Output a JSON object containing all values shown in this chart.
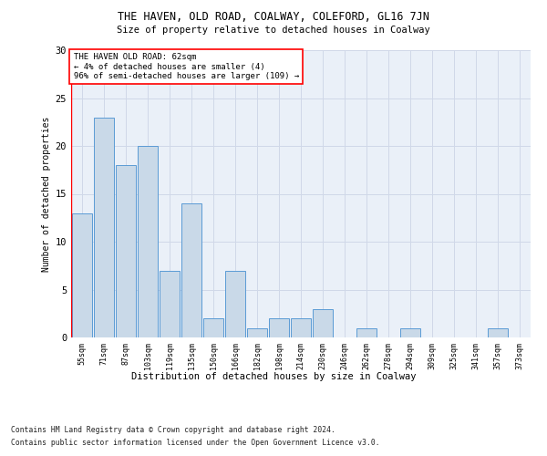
{
  "title": "THE HAVEN, OLD ROAD, COALWAY, COLEFORD, GL16 7JN",
  "subtitle": "Size of property relative to detached houses in Coalway",
  "xlabel": "Distribution of detached houses by size in Coalway",
  "ylabel": "Number of detached properties",
  "categories": [
    "55sqm",
    "71sqm",
    "87sqm",
    "103sqm",
    "119sqm",
    "135sqm",
    "150sqm",
    "166sqm",
    "182sqm",
    "198sqm",
    "214sqm",
    "230sqm",
    "246sqm",
    "262sqm",
    "278sqm",
    "294sqm",
    "309sqm",
    "325sqm",
    "341sqm",
    "357sqm",
    "373sqm"
  ],
  "values": [
    13,
    23,
    18,
    20,
    7,
    14,
    2,
    7,
    1,
    2,
    2,
    3,
    0,
    1,
    0,
    1,
    0,
    0,
    0,
    1,
    0
  ],
  "bar_color": "#c9d9e8",
  "bar_edge_color": "#5b9bd5",
  "annotation_text_line1": "THE HAVEN OLD ROAD: 62sqm",
  "annotation_text_line2": "← 4% of detached houses are smaller (4)",
  "annotation_text_line3": "96% of semi-detached houses are larger (109) →",
  "vline_color": "red",
  "ylim": [
    0,
    30
  ],
  "yticks": [
    0,
    5,
    10,
    15,
    20,
    25,
    30
  ],
  "grid_color": "#d0d8e8",
  "background_color": "#eaf0f8",
  "footer_line1": "Contains HM Land Registry data © Crown copyright and database right 2024.",
  "footer_line2": "Contains public sector information licensed under the Open Government Licence v3.0."
}
